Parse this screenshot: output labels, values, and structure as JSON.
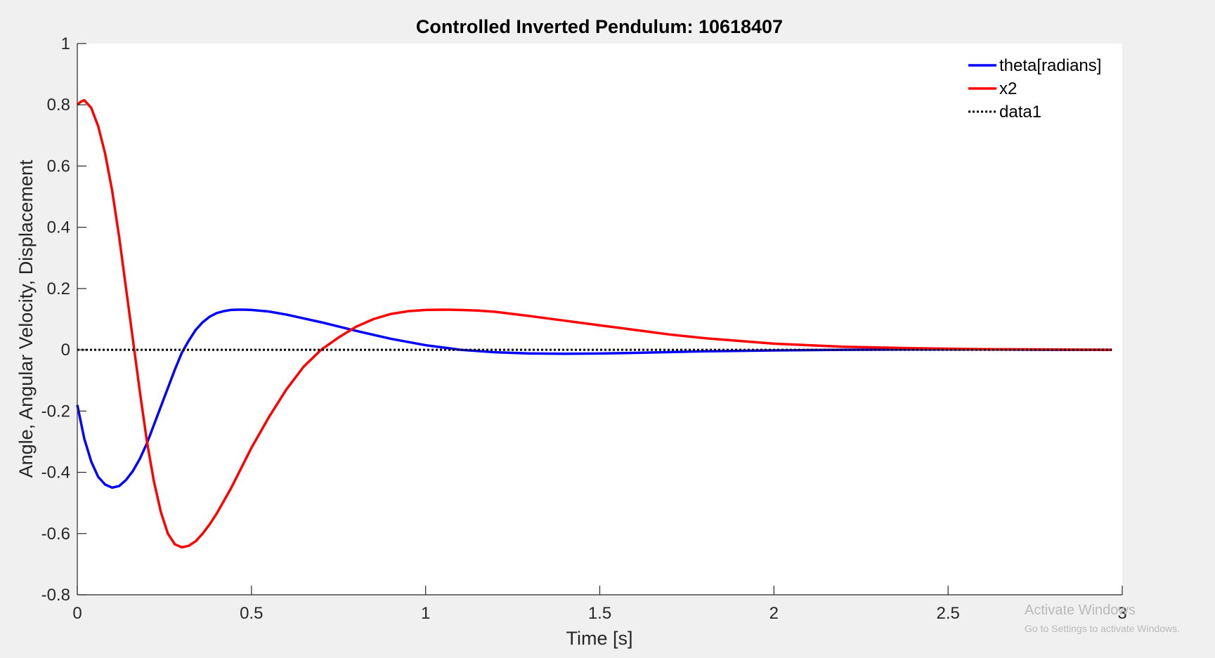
{
  "chart_data": {
    "type": "line",
    "title": "Controlled Inverted Pendulum: 10618407",
    "xlabel": "Time [s]",
    "ylabel": "Angle, Angular Velocity, Displacement",
    "xlim": [
      0,
      3
    ],
    "ylim": [
      -0.8,
      1
    ],
    "xticks": [
      0,
      0.5,
      1,
      1.5,
      2,
      2.5,
      3
    ],
    "xtick_labels": [
      "0",
      "0.5",
      "1",
      "1.5",
      "2",
      "2.5",
      "3"
    ],
    "yticks": [
      -0.8,
      -0.6,
      -0.4,
      -0.2,
      0,
      0.2,
      0.4,
      0.6,
      0.8,
      1
    ],
    "ytick_labels": [
      "-0.8",
      "-0.6",
      "-0.4",
      "-0.2",
      "0",
      "0.2",
      "0.4",
      "0.6",
      "0.8",
      "1"
    ],
    "grid": false,
    "legend_position": "top-right",
    "series": [
      {
        "name": "theta[radians]",
        "color": "#0000ff",
        "style": "solid",
        "x": [
          0,
          0.02,
          0.04,
          0.06,
          0.08,
          0.1,
          0.12,
          0.14,
          0.16,
          0.18,
          0.2,
          0.22,
          0.24,
          0.26,
          0.28,
          0.3,
          0.32,
          0.34,
          0.36,
          0.38,
          0.4,
          0.42,
          0.44,
          0.46,
          0.48,
          0.5,
          0.55,
          0.6,
          0.7,
          0.8,
          0.9,
          1.0,
          1.1,
          1.2,
          1.3,
          1.4,
          1.5,
          1.6,
          1.8,
          2.0,
          2.2,
          2.4,
          2.6,
          2.8,
          2.97
        ],
        "values": [
          -0.18,
          -0.29,
          -0.365,
          -0.415,
          -0.44,
          -0.45,
          -0.445,
          -0.425,
          -0.395,
          -0.355,
          -0.305,
          -0.245,
          -0.185,
          -0.125,
          -0.065,
          -0.01,
          0.03,
          0.065,
          0.09,
          0.108,
          0.12,
          0.126,
          0.13,
          0.131,
          0.131,
          0.13,
          0.125,
          0.115,
          0.09,
          0.062,
          0.036,
          0.015,
          0.0,
          -0.008,
          -0.012,
          -0.013,
          -0.012,
          -0.01,
          -0.005,
          -0.002,
          0.0,
          0.001,
          0.001,
          0.0,
          0.0
        ]
      },
      {
        "name": "x2",
        "color": "#ff0000",
        "style": "solid",
        "x": [
          0,
          0.01,
          0.02,
          0.04,
          0.06,
          0.08,
          0.1,
          0.12,
          0.14,
          0.16,
          0.18,
          0.2,
          0.22,
          0.24,
          0.26,
          0.28,
          0.3,
          0.32,
          0.34,
          0.36,
          0.38,
          0.4,
          0.42,
          0.44,
          0.46,
          0.5,
          0.55,
          0.6,
          0.65,
          0.7,
          0.75,
          0.8,
          0.85,
          0.9,
          0.95,
          1.0,
          1.05,
          1.1,
          1.15,
          1.2,
          1.3,
          1.4,
          1.5,
          1.6,
          1.7,
          1.8,
          2.0,
          2.2,
          2.4,
          2.6,
          2.8,
          2.97
        ],
        "values": [
          0.8,
          0.81,
          0.815,
          0.79,
          0.73,
          0.64,
          0.52,
          0.37,
          0.2,
          0.03,
          -0.14,
          -0.3,
          -0.43,
          -0.53,
          -0.6,
          -0.635,
          -0.645,
          -0.64,
          -0.625,
          -0.6,
          -0.57,
          -0.535,
          -0.495,
          -0.455,
          -0.41,
          -0.32,
          -0.22,
          -0.13,
          -0.055,
          0.0,
          0.04,
          0.075,
          0.1,
          0.117,
          0.126,
          0.13,
          0.131,
          0.13,
          0.128,
          0.124,
          0.11,
          0.095,
          0.08,
          0.065,
          0.05,
          0.038,
          0.02,
          0.01,
          0.005,
          0.002,
          0.001,
          0.0
        ]
      },
      {
        "name": "data1",
        "color": "#000000",
        "style": "dotted",
        "x": [
          0,
          2.97
        ],
        "values": [
          0,
          0
        ]
      }
    ]
  },
  "watermark": {
    "line1": "Activate Windows",
    "line2": "Go to Settings to activate Windows."
  }
}
